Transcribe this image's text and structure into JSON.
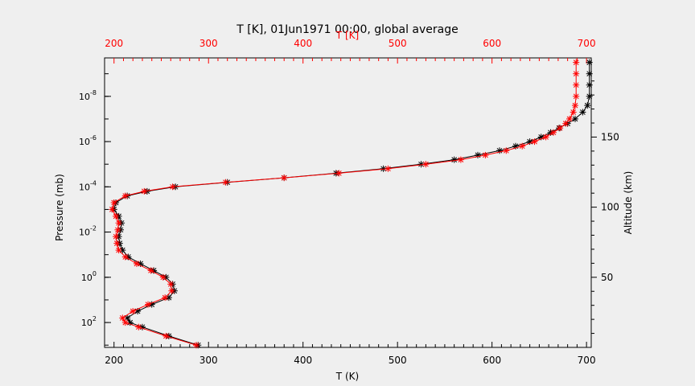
{
  "chart_data": {
    "type": "line",
    "title": "T [K], 01Jun1971 00:00, global average",
    "top_axis_label": "T [K]",
    "xlabel": "T (K)",
    "ylabel": "Pressure (mb)",
    "right_axis_label": "Altitude (km)",
    "xlim": [
      190,
      705
    ],
    "ylim_log10_pressure_mb": [
      3.1,
      -9.7
    ],
    "x_ticks": [
      "200",
      "300",
      "400",
      "500",
      "600",
      "700"
    ],
    "y_ticks": [
      {
        "base": "10",
        "exp": "-8",
        "log": -8
      },
      {
        "base": "10",
        "exp": "-6",
        "log": -6
      },
      {
        "base": "10",
        "exp": "-4",
        "log": -4
      },
      {
        "base": "10",
        "exp": "-2",
        "log": -2
      },
      {
        "base": "10",
        "exp": "0",
        "log": 0
      },
      {
        "base": "10",
        "exp": "2",
        "log": 2
      }
    ],
    "altitude_ticks": [
      {
        "label": "50",
        "log": 0
      },
      {
        "label": "100",
        "log": -3.1
      },
      {
        "label": "150",
        "log": -6.2
      }
    ],
    "series": [
      {
        "color": "#000000",
        "log_p": [
          3.0,
          2.6,
          2.2,
          2.0,
          1.8,
          1.5,
          1.2,
          0.9,
          0.6,
          0.3,
          0.0,
          -0.3,
          -0.6,
          -0.9,
          -1.2,
          -1.5,
          -1.8,
          -2.1,
          -2.4,
          -2.7,
          -3.0,
          -3.3,
          -3.6,
          -3.8,
          -4.0,
          -4.2,
          -4.4,
          -4.6,
          -4.8,
          -5.0,
          -5.2,
          -5.4,
          -5.6,
          -5.8,
          -6.0,
          -6.2,
          -6.4,
          -6.6,
          -6.8,
          -7.0,
          -7.3,
          -7.6,
          -8.0,
          -8.5,
          -9.0,
          -9.5
        ],
        "T": [
          289,
          258,
          230,
          217,
          214,
          225,
          240,
          258,
          264,
          262,
          255,
          242,
          228,
          215,
          209,
          206,
          205,
          207,
          208,
          205,
          200,
          202,
          214,
          235,
          265,
          320,
          380,
          435,
          485,
          525,
          560,
          585,
          608,
          625,
          640,
          652,
          662,
          671,
          680,
          688,
          696,
          701,
          703,
          703,
          703,
          703
        ]
      },
      {
        "color": "#ff0000",
        "log_p": [
          3.0,
          2.6,
          2.2,
          2.0,
          1.8,
          1.5,
          1.2,
          0.9,
          0.6,
          0.3,
          0.0,
          -0.3,
          -0.6,
          -0.9,
          -1.2,
          -1.5,
          -1.8,
          -2.1,
          -2.4,
          -2.7,
          -3.0,
          -3.3,
          -3.6,
          -3.8,
          -4.0,
          -4.2,
          -4.4,
          -4.6,
          -4.8,
          -5.0,
          -5.2,
          -5.4,
          -5.6,
          -5.8,
          -6.0,
          -6.2,
          -6.4,
          -6.6,
          -6.8,
          -7.0,
          -7.3,
          -7.6,
          -8.0,
          -8.5,
          -9.0,
          -9.5
        ],
        "T": [
          287,
          255,
          226,
          212,
          209,
          220,
          236,
          254,
          261,
          260,
          252,
          239,
          224,
          212,
          205,
          203,
          202,
          204,
          205,
          202,
          198,
          200,
          212,
          232,
          262,
          318,
          380,
          438,
          490,
          530,
          567,
          593,
          615,
          632,
          645,
          657,
          665,
          672,
          678,
          682,
          686,
          688,
          689,
          689,
          689,
          689
        ]
      }
    ]
  }
}
